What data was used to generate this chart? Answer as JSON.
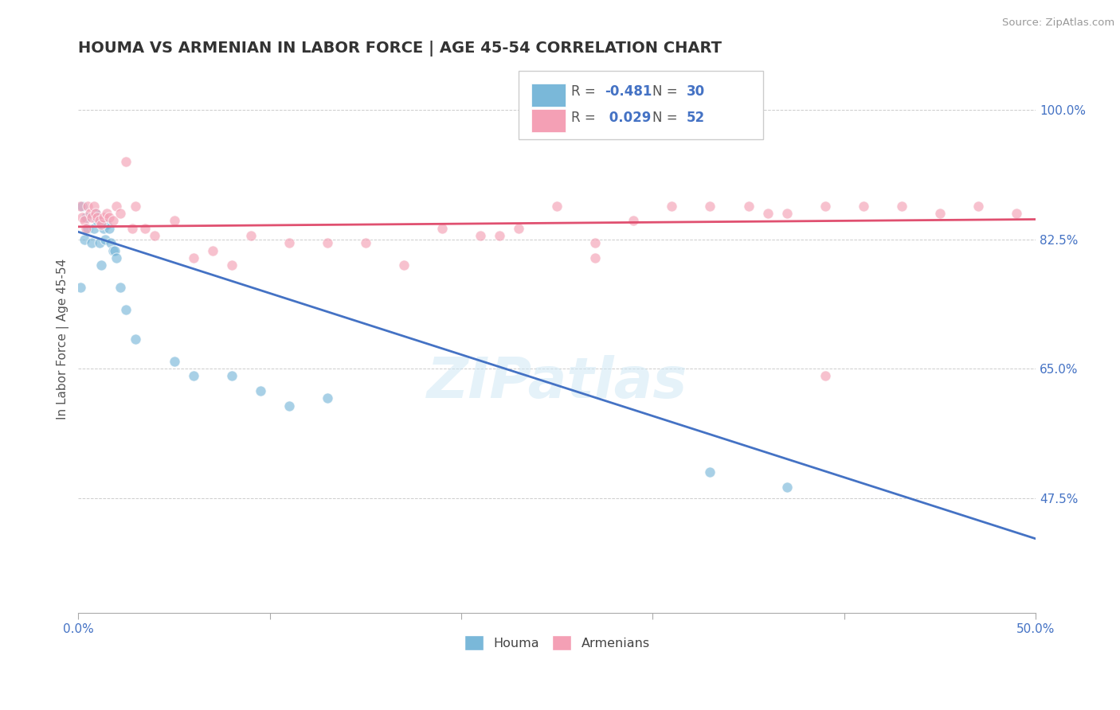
{
  "title": "HOUMA VS ARMENIAN IN LABOR FORCE | AGE 45-54 CORRELATION CHART",
  "source": "Source: ZipAtlas.com",
  "ylabel": "In Labor Force | Age 45-54",
  "xlim": [
    0.0,
    0.5
  ],
  "ylim": [
    0.32,
    1.06
  ],
  "xtick_positions": [
    0.0,
    0.1,
    0.2,
    0.3,
    0.4,
    0.5
  ],
  "xtick_labels_ends": [
    "0.0%",
    "50.0%"
  ],
  "yticks": [
    0.475,
    0.65,
    0.825,
    1.0
  ],
  "yticklabels": [
    "47.5%",
    "65.0%",
    "82.5%",
    "100.0%"
  ],
  "r_houma": -0.481,
  "n_houma": 30,
  "r_armenian": 0.029,
  "n_armenian": 52,
  "houma_color": "#7ab8d9",
  "armenian_color": "#f4a0b5",
  "houma_line_color": "#4472c4",
  "armenian_line_color": "#e05070",
  "watermark": "ZIPatlas",
  "background_color": "#ffffff",
  "grid_color": "#cccccc",
  "houma_points_x": [
    0.001,
    0.003,
    0.002,
    0.004,
    0.005,
    0.007,
    0.008,
    0.009,
    0.01,
    0.011,
    0.012,
    0.013,
    0.014,
    0.015,
    0.016,
    0.017,
    0.018,
    0.019,
    0.02,
    0.022,
    0.025,
    0.03,
    0.05,
    0.06,
    0.08,
    0.095,
    0.11,
    0.13,
    0.33,
    0.37
  ],
  "houma_points_y": [
    0.76,
    0.825,
    0.87,
    0.855,
    0.84,
    0.82,
    0.84,
    0.86,
    0.85,
    0.82,
    0.79,
    0.84,
    0.825,
    0.845,
    0.84,
    0.82,
    0.81,
    0.81,
    0.8,
    0.76,
    0.73,
    0.69,
    0.66,
    0.64,
    0.64,
    0.62,
    0.6,
    0.61,
    0.51,
    0.49
  ],
  "armenian_points_x": [
    0.001,
    0.002,
    0.003,
    0.004,
    0.005,
    0.006,
    0.007,
    0.008,
    0.009,
    0.01,
    0.011,
    0.012,
    0.013,
    0.015,
    0.016,
    0.018,
    0.02,
    0.022,
    0.025,
    0.028,
    0.03,
    0.035,
    0.04,
    0.05,
    0.06,
    0.07,
    0.08,
    0.09,
    0.11,
    0.13,
    0.15,
    0.17,
    0.19,
    0.21,
    0.23,
    0.25,
    0.27,
    0.29,
    0.31,
    0.33,
    0.35,
    0.37,
    0.39,
    0.41,
    0.43,
    0.45,
    0.47,
    0.49,
    0.39,
    0.27,
    0.22,
    0.36
  ],
  "armenian_points_y": [
    0.87,
    0.855,
    0.85,
    0.84,
    0.87,
    0.86,
    0.855,
    0.87,
    0.86,
    0.855,
    0.85,
    0.845,
    0.855,
    0.86,
    0.855,
    0.85,
    0.87,
    0.86,
    0.93,
    0.84,
    0.87,
    0.84,
    0.83,
    0.85,
    0.8,
    0.81,
    0.79,
    0.83,
    0.82,
    0.82,
    0.82,
    0.79,
    0.84,
    0.83,
    0.84,
    0.87,
    0.82,
    0.85,
    0.87,
    0.87,
    0.87,
    0.86,
    0.87,
    0.87,
    0.87,
    0.86,
    0.87,
    0.86,
    0.64,
    0.8,
    0.83,
    0.86
  ]
}
